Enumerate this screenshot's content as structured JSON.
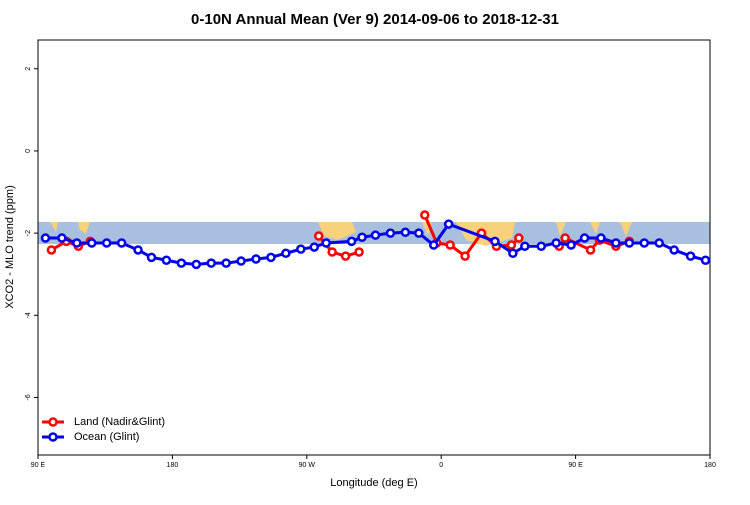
{
  "chart_data": {
    "type": "line",
    "title": "0-10N Annual Mean (Ver 9)   2014-09-06 to 2018-12-31",
    "x_label": "Longitude (deg E)",
    "y_label": "XCO2 - MLO trend (ppm)",
    "xlim": [
      90,
      540
    ],
    "ylim": [
      -7.4,
      2.7
    ],
    "xticks": [
      {
        "value": 90,
        "label": "90 E"
      },
      180,
      {
        "value": 270,
        "label": "90 W"
      },
      {
        "value": 360,
        "label": "0"
      },
      {
        "value": 450,
        "label": "90 E"
      },
      {
        "value": 540,
        "label": "180"
      }
    ],
    "yticks": [
      2,
      0,
      -2,
      -4,
      -6
    ],
    "grid": false,
    "legend": "bottom-left",
    "series": [
      {
        "name": "Land (Nadir&Glint)",
        "color": "#ff0000",
        "x": [
          99,
          109,
          117,
          125,
          null,
          278,
          287,
          296,
          305,
          null,
          349,
          357,
          366,
          376,
          387,
          397,
          407,
          412,
          null,
          439,
          443,
          460,
          466,
          477,
          486
        ],
        "values": [
          -2.41,
          -2.2,
          -2.32,
          -2.2,
          null,
          -2.07,
          -2.46,
          -2.56,
          -2.46,
          null,
          -1.56,
          -2.24,
          -2.29,
          -2.56,
          -2.0,
          -2.32,
          -2.29,
          -2.12,
          null,
          -2.32,
          -2.12,
          -2.41,
          -2.17,
          -2.32,
          -2.2
        ]
      },
      {
        "name": "Ocean (Glint)",
        "color": "#0000ee",
        "x": [
          95,
          106,
          116,
          126,
          136,
          146,
          157,
          166,
          176,
          186,
          196,
          206,
          216,
          226,
          236,
          246,
          256,
          266,
          275,
          283,
          300,
          307,
          316,
          326,
          336,
          345,
          355,
          365,
          396,
          408,
          416,
          427,
          437,
          447,
          456,
          467,
          477,
          486,
          496,
          506,
          516,
          527,
          537
        ],
        "values": [
          -2.12,
          -2.12,
          -2.24,
          -2.24,
          -2.24,
          -2.24,
          -2.41,
          -2.59,
          -2.66,
          -2.73,
          -2.76,
          -2.73,
          -2.73,
          -2.68,
          -2.63,
          -2.59,
          -2.49,
          -2.39,
          -2.34,
          -2.24,
          -2.2,
          -2.1,
          -2.05,
          -2.0,
          -1.98,
          -2.0,
          -2.29,
          -1.78,
          -2.2,
          -2.49,
          -2.32,
          -2.32,
          -2.24,
          -2.29,
          -2.12,
          -2.12,
          -2.24,
          -2.24,
          -2.24,
          -2.24,
          -2.41,
          -2.56,
          -2.66
        ]
      }
    ]
  }
}
